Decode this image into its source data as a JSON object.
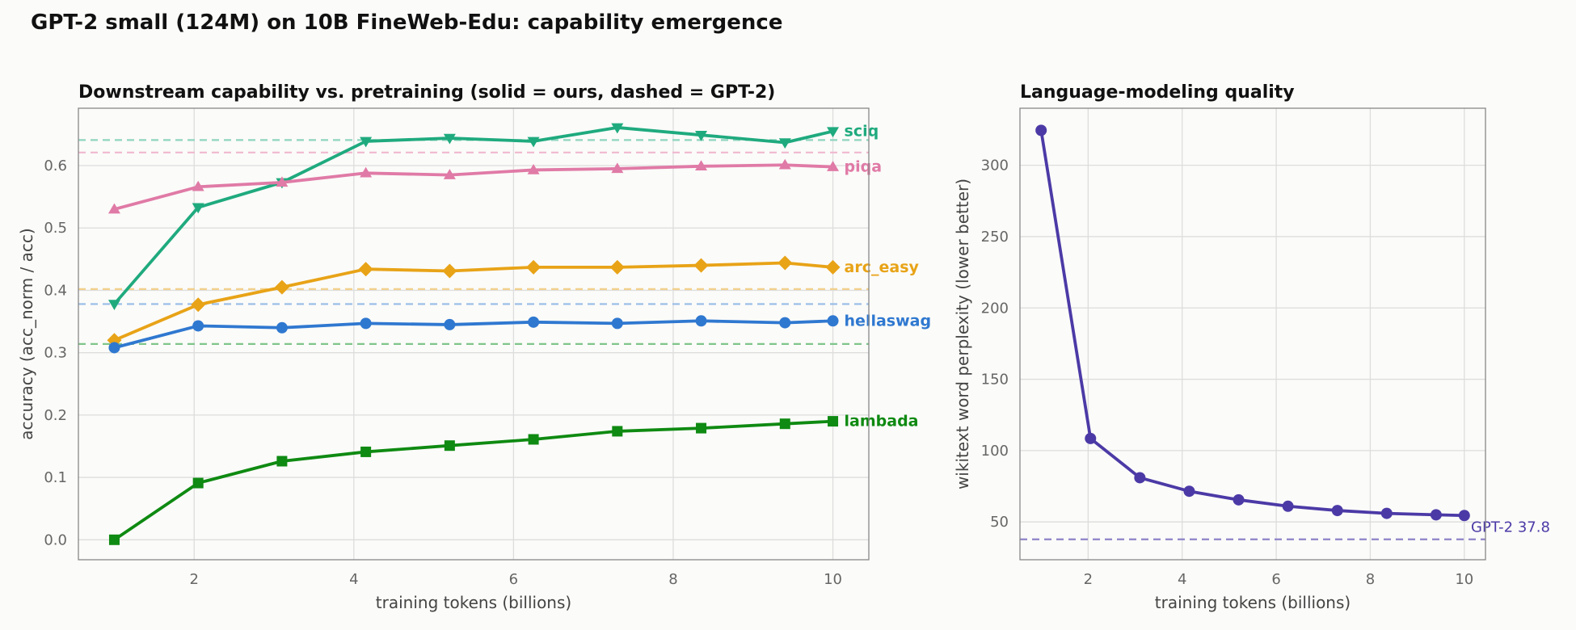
{
  "figure": {
    "suptitle": "GPT-2 small (124M) on 10B FineWeb-Edu: capability emergence"
  },
  "chart_data": [
    {
      "type": "line",
      "title": "Downstream capability vs. pretraining  (solid = ours, dashed = GPT-2)",
      "xlabel": "training tokens (billions)",
      "ylabel": "accuracy (acc_norm / acc)",
      "xlim": [
        0.55,
        10.45
      ],
      "ylim": [
        -0.032,
        0.692
      ],
      "x_ticks": [
        "2",
        "4",
        "6",
        "8",
        "10"
      ],
      "y_ticks": [
        "0.0",
        "0.1",
        "0.2",
        "0.3",
        "0.4",
        "0.5",
        "0.6"
      ],
      "grid": true,
      "x": [
        1.0,
        2.05,
        3.1,
        4.15,
        5.2,
        6.25,
        7.3,
        8.35,
        9.4,
        10.0
      ],
      "series": [
        {
          "name": "sciq",
          "color": "#1faa7e",
          "marker": "triangle-down",
          "values": [
            0.378,
            0.533,
            0.573,
            0.639,
            0.644,
            0.639,
            0.661,
            0.649,
            0.637,
            0.655
          ],
          "baseline": 0.641,
          "baseline_color": "#8fd5bf"
        },
        {
          "name": "piqa",
          "color": "#e07aa6",
          "marker": "triangle-up",
          "values": [
            0.53,
            0.566,
            0.573,
            0.588,
            0.585,
            0.593,
            0.595,
            0.599,
            0.601,
            0.598
          ],
          "baseline": 0.621,
          "baseline_color": "#f0b8cf"
        },
        {
          "name": "arc_easy",
          "color": "#e8a317",
          "marker": "diamond",
          "values": [
            0.32,
            0.377,
            0.405,
            0.434,
            0.431,
            0.437,
            0.437,
            0.44,
            0.444,
            0.437
          ],
          "baseline": 0.402,
          "baseline_color": "#f2d18c"
        },
        {
          "name": "hellaswag",
          "color": "#2f78d0",
          "marker": "circle",
          "values": [
            0.308,
            0.343,
            0.34,
            0.347,
            0.345,
            0.349,
            0.347,
            0.351,
            0.348,
            0.351
          ],
          "baseline": 0.378,
          "baseline_color": "#98bce8"
        },
        {
          "name": "lambada",
          "color": "#0f8a12",
          "marker": "square",
          "values": [
            0.0,
            0.091,
            0.126,
            0.141,
            0.151,
            0.161,
            0.174,
            0.179,
            0.186,
            0.19
          ],
          "baseline": 0.314,
          "baseline_color": "#7fc58a"
        }
      ]
    },
    {
      "type": "line",
      "title": "Language-modeling quality",
      "xlabel": "training tokens (billions)",
      "ylabel": "wikitext word perplexity  (lower better)",
      "xlim": [
        0.55,
        10.45
      ],
      "ylim": [
        23.5,
        340
      ],
      "x_ticks": [
        "2",
        "4",
        "6",
        "8",
        "10"
      ],
      "y_ticks": [
        "50",
        "100",
        "150",
        "200",
        "250",
        "300"
      ],
      "grid": true,
      "x": [
        1.0,
        2.05,
        3.1,
        4.15,
        5.2,
        6.25,
        7.3,
        8.35,
        9.4,
        10.0
      ],
      "series": [
        {
          "name": "",
          "color": "#4b3aa6",
          "marker": "circle",
          "values": [
            324.5,
            108.5,
            81.0,
            71.5,
            65.5,
            61.0,
            58.0,
            56.0,
            55.0,
            54.5
          ]
        }
      ],
      "reference": {
        "value": 37.8,
        "label": "GPT-2 37.8",
        "color": "#4b3aa6"
      }
    }
  ]
}
